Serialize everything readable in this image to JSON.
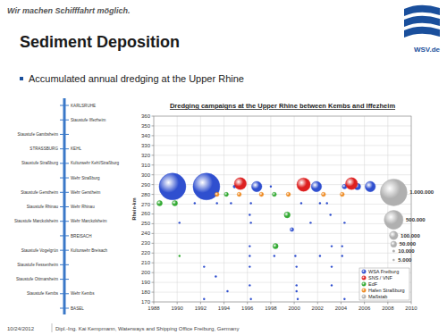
{
  "slide": {
    "tagline": "Wir machen Schifffahrt möglich.",
    "logo_text": "WSV.de",
    "title": "Sediment Deposition",
    "bullet": "Accumulated annual dredging at the Upper Rhine",
    "date": "10/24/2012",
    "footer": "Dipl.-Ing. Kai Kempmann, Waterways and Shipping Office Freiburg, Germany",
    "map": {
      "rows": [
        {
          "right": "KARLSRUHE"
        },
        {
          "right": "Staustufe Iffezheim"
        },
        {
          "left": "Staustufe Gambsheim"
        },
        {
          "left": "STRASSBURG",
          "right": "KEHL"
        },
        {
          "left": "Staustufe Straßburg",
          "right": "Kulturwehr Kehl/Straßburg"
        },
        {
          "right": "Wehr Straßburg"
        },
        {
          "left": "Staustufe Gerstheim",
          "right": "Wehr Gerstheim"
        },
        {
          "left": "Staustufe Rhinau",
          "right": "Wehr Rhinau"
        },
        {
          "left": "Staustufe Marckolsheim",
          "right": "Wehr Marckolsheim"
        },
        {
          "right": "BREISACH"
        },
        {
          "left": "Staustufe Vogelgrün",
          "right": "Kulturwehr Breisach"
        },
        {
          "left": "Staustufe Fessenheim"
        },
        {
          "left": "Staustufe Ottmarsheim"
        },
        {
          "left": "Staustufe Kembs",
          "right": "Wehr Kembs"
        },
        {
          "right": "BASEL"
        }
      ]
    }
  },
  "chart_data": {
    "type": "bubble",
    "title": "Dredging campaigns at the Upper Rhine between Kembs and Iffezheim",
    "y_label": "Rhein-km",
    "xlim": [
      1988,
      2010
    ],
    "xticks": [
      1988,
      1990,
      1992,
      1994,
      1996,
      1998,
      2000,
      2002,
      2004,
      2006,
      2008,
      2010
    ],
    "ylim": [
      170,
      360
    ],
    "yticks": [
      170,
      180,
      190,
      200,
      210,
      220,
      230,
      240,
      250,
      260,
      270,
      280,
      290,
      300,
      310,
      320,
      330,
      340,
      350,
      360
    ],
    "grid": true,
    "legend": "lower right",
    "series": [
      {
        "name": "WSA Freiburg",
        "color": "#2f4fcf",
        "x": [
          1989.6,
          1992.5,
          1994.9,
          1996.8,
          1998.0,
          2001.9,
          2004.3,
          2005.4,
          2006.5,
          1991.5,
          1993.4,
          1994.6,
          1996.3,
          2000.6,
          2002.2,
          2002.8,
          1996.2,
          2003.1,
          1990.2,
          1996.3,
          2001.4,
          2004.3,
          1999.8,
          1996.2,
          2003.2,
          2004.1,
          1996.2,
          1998.3,
          2000.1,
          2002.2,
          2004.1,
          1992.3,
          1996.2,
          2000.2,
          2003.2,
          1993.3,
          1996.2,
          2000.2,
          2003.2,
          1994.3,
          2000.2,
          1992.3,
          1996.3,
          2000.3,
          2004.3
        ],
        "values": [
          288,
          288,
          288,
          288,
          288,
          288,
          288,
          288,
          288,
          271,
          271,
          271,
          271,
          271,
          271,
          271,
          259,
          259,
          251,
          251,
          251,
          251,
          244,
          227,
          227,
          227,
          217,
          217,
          217,
          217,
          217,
          206,
          206,
          206,
          206,
          196,
          187,
          187,
          187,
          181,
          181,
          173,
          173,
          173,
          173
        ],
        "sizes": [
          1000000,
          1000000,
          15000,
          150000,
          3000,
          150000,
          30000,
          60000,
          150000,
          3000,
          3000,
          3000,
          3000,
          3000,
          3000,
          3000,
          3000,
          3000,
          3000,
          3000,
          3000,
          3000,
          20000,
          3000,
          3000,
          3000,
          3000,
          3000,
          3000,
          3000,
          3000,
          3000,
          3000,
          3000,
          3000,
          3000,
          3000,
          3000,
          3000,
          3000,
          3000,
          3000,
          3000,
          3000,
          3000
        ]
      },
      {
        "name": "SNS / VNF",
        "color": "#dd2020",
        "x": [
          1995.4,
          2000.8,
          2004.9
        ],
        "values": [
          291,
          290,
          291
        ],
        "sizes": [
          200000,
          250000,
          200000
        ]
      },
      {
        "name": "EdF",
        "color": "#33aa33",
        "x": [
          1994.2,
          1998.3,
          1988.5,
          1989.8,
          1999.4,
          1998.4,
          1990.2
        ],
        "values": [
          280,
          280,
          271,
          271,
          259,
          227,
          217
        ],
        "sizes": [
          25000,
          25000,
          40000,
          40000,
          50000,
          40000,
          5000
        ]
      },
      {
        "name": "Hafen Straßburg",
        "color": "#ee8a22",
        "x": [
          1993.4,
          1995.3,
          1997.2,
          1999.5,
          2002.5,
          2004.1
        ],
        "values": [
          280,
          280,
          280,
          280,
          280,
          280
        ],
        "sizes": [
          25000,
          25000,
          25000,
          25000,
          25000,
          25000
        ]
      },
      {
        "name": "Maßstab",
        "color": "#b0b0b0",
        "x": [
          2008.5,
          2008.5,
          2008.5,
          2008.5,
          2008.5,
          2008.5
        ],
        "values": [
          282,
          254,
          238,
          229,
          222,
          213
        ],
        "sizes": [
          1000000,
          500000,
          100000,
          50000,
          10000,
          5000
        ],
        "size_labels": [
          "1.000.000",
          "500.000",
          "100.000",
          "50.000",
          "10.000",
          "5.000"
        ]
      }
    ]
  }
}
